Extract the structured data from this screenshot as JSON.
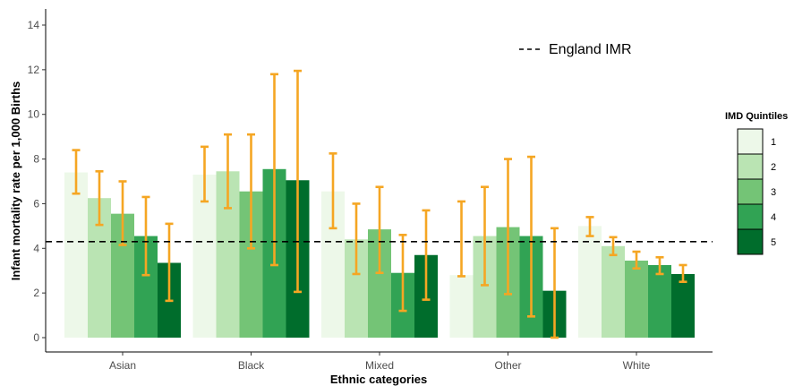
{
  "chart_data": {
    "type": "bar",
    "xlabel": "Ethnic categories",
    "ylabel": "Infant mortality rate per 1,000 Births",
    "ylim": [
      0,
      14
    ],
    "yticks": [
      0,
      2,
      4,
      6,
      8,
      10,
      12,
      14
    ],
    "grid": false,
    "categories": [
      "Asian",
      "Black",
      "Mixed",
      "Other",
      "White"
    ],
    "legend": {
      "title": "IMD Quintiles",
      "placement": "right"
    },
    "series": [
      {
        "name": "1",
        "color": "#edf8e9",
        "values": [
          7.4,
          7.3,
          6.55,
          2.8,
          5.0
        ],
        "ci_low": [
          6.45,
          6.1,
          4.9,
          2.75,
          4.55
        ],
        "ci_high": [
          8.4,
          8.55,
          8.25,
          6.1,
          5.4
        ]
      },
      {
        "name": "2",
        "color": "#bae4b3",
        "values": [
          6.25,
          7.45,
          4.4,
          4.55,
          4.1
        ],
        "ci_low": [
          5.05,
          5.8,
          2.85,
          2.35,
          3.7
        ],
        "ci_high": [
          7.45,
          9.1,
          6.0,
          6.75,
          4.5
        ]
      },
      {
        "name": "3",
        "color": "#74c476",
        "values": [
          5.55,
          6.55,
          4.85,
          4.95,
          3.45
        ],
        "ci_low": [
          4.15,
          4.0,
          2.9,
          1.95,
          3.1
        ],
        "ci_high": [
          7.0,
          9.1,
          6.75,
          8.0,
          3.85
        ]
      },
      {
        "name": "4",
        "color": "#31a354",
        "values": [
          4.55,
          7.55,
          2.9,
          4.55,
          3.25
        ],
        "ci_low": [
          2.8,
          3.25,
          1.2,
          0.95,
          2.85
        ],
        "ci_high": [
          6.3,
          11.8,
          4.6,
          8.1,
          3.6
        ]
      },
      {
        "name": "5",
        "color": "#006d2c",
        "values": [
          3.35,
          7.05,
          3.7,
          2.1,
          2.85
        ],
        "ci_low": [
          1.65,
          2.05,
          1.7,
          0.0,
          2.5
        ],
        "ci_high": [
          5.1,
          11.95,
          5.7,
          4.9,
          3.25
        ]
      }
    ],
    "error_bar_color": "#f5a623",
    "reference_line": {
      "label": "England IMR",
      "value": 4.3,
      "style": "dashed",
      "color": "#000000"
    }
  }
}
